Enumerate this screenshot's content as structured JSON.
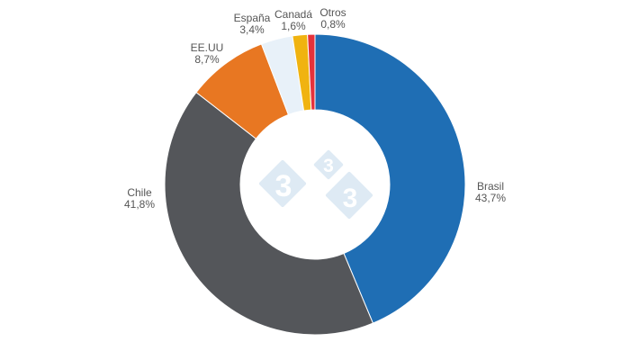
{
  "chart_data": {
    "type": "pie",
    "donut": true,
    "start": "top, clockwise",
    "slices": [
      {
        "label": "Brasil",
        "value": 43.7,
        "value_label": "43,7%",
        "color": "#1f6eb4"
      },
      {
        "label": "Chile",
        "value": 41.8,
        "value_label": "41,8%",
        "color": "#54565a"
      },
      {
        "label": "EE.UU",
        "value": 8.7,
        "value_label": "8,7%",
        "color": "#e87722"
      },
      {
        "label": "España",
        "value": 3.4,
        "value_label": "3,4%",
        "color": "#e8f1f9"
      },
      {
        "label": "Canadá",
        "value": 1.6,
        "value_label": "1,6%",
        "color": "#f0b310"
      },
      {
        "label": "Otros",
        "value": 0.8,
        "value_label": "0,8%",
        "color": "#e5323b"
      }
    ],
    "legend": "none"
  },
  "watermark": {
    "text": "3",
    "color": "#deeaf4"
  }
}
